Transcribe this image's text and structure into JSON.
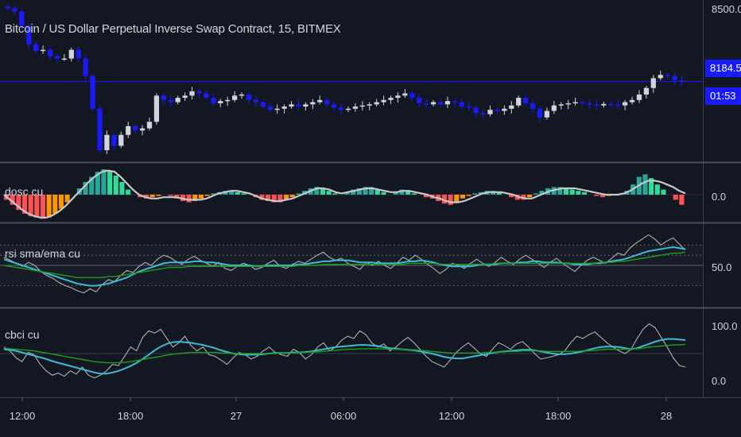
{
  "header": {
    "title": "Bitcoin / US Dollar Perpetual Inverse Swap Contract, 15, BITMEX"
  },
  "colors": {
    "background": "#131722",
    "candle_up": "#d1d4dc",
    "candle_down": "#1a1aff",
    "hist_up_strong": "#26a69a",
    "hist_up_weak": "#2edb9a",
    "hist_down_strong": "#ff5252",
    "hist_down_weak": "#ff9800",
    "oscillator_line": "#c8c8c8",
    "rsi_line": "#b0b0b0",
    "sma_line": "#3cbcd4",
    "ema_line": "#1e9e1e",
    "price_line": "#1a1aff"
  },
  "price_tags": {
    "last_price": "8184.5",
    "countdown": "01:53"
  },
  "chart_data": [
    {
      "type": "candlestick",
      "title": "Bitcoin / US Dollar Perpetual Inverse Swap Contract, 15, BITMEX",
      "y_axis": {
        "ticks": [
          "8500.0"
        ],
        "last_value": 8184.5
      },
      "x_axis": {
        "ticks": [
          "12:00",
          "18:00",
          "27",
          "06:00",
          "12:00",
          "18:00",
          "28"
        ]
      },
      "closes": [
        8520,
        8505,
        8440,
        8355,
        8325,
        8330,
        8300,
        8290,
        8290,
        8330,
        8290,
        8210,
        8060,
        7870,
        7940,
        7890,
        7940,
        7980,
        7960,
        7970,
        8000,
        8120,
        8100,
        8090,
        8110,
        8120,
        8140,
        8130,
        8110,
        8085,
        8095,
        8100,
        8120,
        8125,
        8100,
        8090,
        8070,
        8055,
        8060,
        8070,
        8080,
        8070,
        8080,
        8090,
        8100,
        8080,
        8065,
        8055,
        8060,
        8070,
        8075,
        8080,
        8090,
        8100,
        8110,
        8120,
        8130,
        8110,
        8085,
        8080,
        8090,
        8080,
        8095,
        8090,
        8070,
        8065,
        8040,
        8035,
        8055,
        8050,
        8060,
        8075,
        8110,
        8085,
        8060,
        8020,
        8050,
        8075,
        8080,
        8085,
        8090,
        8085,
        8080,
        8075,
        8082,
        8080,
        8075,
        8090,
        8100,
        8125,
        8155,
        8200,
        8215,
        8210,
        8190,
        8185
      ]
    },
    {
      "type": "histogram",
      "name": "dosc cu",
      "y_axis": {
        "ticks": [
          "0.0"
        ]
      },
      "values": [
        -4,
        -8,
        -12,
        -15,
        -17,
        -18,
        -19,
        -18,
        -15,
        -11,
        -6,
        0,
        5,
        10,
        14,
        18,
        20,
        19,
        15,
        10,
        4,
        0,
        -2,
        -3,
        -2,
        -1,
        0,
        -1,
        -3,
        -5,
        -6,
        -5,
        -3,
        -1,
        1,
        2,
        3,
        3,
        2,
        1,
        0,
        -2,
        -4,
        -5,
        -6,
        -6,
        -4,
        -2,
        1,
        3,
        5,
        6,
        5,
        3,
        1,
        0,
        2,
        4,
        5,
        6,
        6,
        4,
        2,
        0,
        2,
        4,
        3,
        1,
        0,
        -2,
        -3,
        -5,
        -7,
        -8,
        -6,
        -3,
        -1,
        1,
        2,
        3,
        3,
        2,
        0,
        -2,
        -4,
        -4,
        -2,
        1,
        3,
        5,
        6,
        6,
        5,
        4,
        3,
        2,
        0,
        -1,
        -2,
        -1,
        0,
        1,
        3,
        8,
        14,
        16,
        13,
        8,
        4,
        0,
        -4,
        -8
      ],
      "line": [
        0,
        -4,
        -8,
        -12,
        -15,
        -17,
        -18,
        -18,
        -16,
        -13,
        -9,
        -4,
        1,
        6,
        11,
        15,
        18,
        19,
        18,
        14,
        9,
        4,
        0,
        -2,
        -3,
        -3,
        -2,
        -2,
        -2,
        -3,
        -4,
        -4,
        -4,
        -3,
        -1,
        1,
        2,
        3,
        3,
        2,
        1,
        -1,
        -3,
        -4,
        -5,
        -5,
        -4,
        -3,
        -1,
        1,
        3,
        5,
        5,
        4,
        2,
        1,
        2,
        3,
        4,
        5,
        5,
        4,
        3,
        2,
        2,
        3,
        3,
        2,
        1,
        0,
        -2,
        -3,
        -5,
        -6,
        -6,
        -5,
        -3,
        -1,
        1,
        2,
        2,
        2,
        1,
        0,
        -2,
        -3,
        -3,
        -1,
        1,
        3,
        4,
        5,
        5,
        5,
        4,
        3,
        2,
        1,
        0,
        0,
        0,
        1,
        3,
        6,
        9,
        11,
        11,
        10,
        8,
        6,
        3,
        1
      ]
    },
    {
      "type": "line",
      "name": "rsi sma/ema cu",
      "y_axis": {
        "ticks": [
          "50.0"
        ]
      },
      "guides": [
        70,
        60,
        50,
        30
      ],
      "series": [
        {
          "values": [
            58,
            55,
            52,
            49,
            53,
            50,
            44,
            40,
            37,
            33,
            30,
            28,
            25,
            23,
            27,
            24,
            31,
            36,
            34,
            40,
            45,
            43,
            49,
            53,
            50,
            56,
            60,
            58,
            54,
            51,
            56,
            59,
            55,
            52,
            49,
            53,
            47,
            45,
            49,
            52,
            50,
            46,
            48,
            52,
            55,
            49,
            47,
            51,
            54,
            52,
            56,
            60,
            63,
            58,
            55,
            57,
            52,
            49,
            46,
            53,
            50,
            54,
            50,
            47,
            52,
            58,
            55,
            60,
            56,
            51,
            47,
            42,
            46,
            52,
            50,
            47,
            52,
            56,
            52,
            49,
            53,
            58,
            54,
            51,
            56,
            60,
            56,
            52,
            48,
            53,
            57,
            52,
            48,
            44,
            50,
            55,
            58,
            55,
            52,
            57,
            62,
            60,
            67,
            72,
            76,
            80,
            76,
            70,
            74,
            77,
            71,
            65
          ]
        },
        {
          "values": [
            56,
            54,
            52,
            50,
            48,
            46,
            44,
            42,
            40,
            38,
            36,
            34,
            32,
            31,
            30,
            30,
            31,
            32,
            34,
            36,
            38,
            41,
            44,
            46,
            48,
            50,
            52,
            53,
            53,
            53,
            53,
            54,
            54,
            53,
            53,
            52,
            51,
            50,
            50,
            50,
            50,
            49,
            49,
            50,
            50,
            50,
            50,
            50,
            51,
            51,
            52,
            53,
            54,
            54,
            55,
            55,
            55,
            54,
            53,
            53,
            53,
            52,
            52,
            52,
            52,
            53,
            54,
            54,
            55,
            54,
            53,
            51,
            50,
            49,
            49,
            49,
            49,
            50,
            51,
            51,
            51,
            52,
            52,
            52,
            53,
            53,
            54,
            54,
            53,
            53,
            53,
            52,
            52,
            51,
            51,
            51,
            52,
            52,
            53,
            54,
            55,
            56,
            58,
            60,
            62,
            64,
            65,
            66,
            67,
            68,
            67,
            66
          ]
        },
        {
          "values": [
            50,
            49,
            48,
            47,
            46,
            45,
            44,
            43,
            42,
            41,
            40,
            39,
            38,
            38,
            38,
            38,
            38,
            39,
            39,
            40,
            41,
            42,
            43,
            44,
            45,
            46,
            47,
            48,
            48,
            48,
            49,
            49,
            49,
            49,
            49,
            49,
            49,
            49,
            49,
            49,
            49,
            49,
            49,
            49,
            49,
            49,
            49,
            49,
            50,
            50,
            50,
            50,
            51,
            51,
            51,
            51,
            51,
            51,
            51,
            51,
            51,
            51,
            51,
            51,
            51,
            51,
            52,
            52,
            52,
            52,
            52,
            51,
            51,
            51,
            51,
            51,
            51,
            51,
            51,
            51,
            52,
            52,
            52,
            52,
            52,
            52,
            52,
            52,
            52,
            52,
            52,
            52,
            52,
            52,
            52,
            52,
            52,
            53,
            53,
            53,
            54,
            54,
            55,
            56,
            57,
            58,
            59,
            60,
            61,
            62,
            62,
            63
          ]
        }
      ]
    },
    {
      "type": "line",
      "name": "cbci cu",
      "y_axis": {
        "ticks": [
          "100.0",
          "0.0"
        ]
      },
      "guides": [
        50
      ],
      "series": [
        {
          "values": [
            62,
            55,
            42,
            35,
            52,
            48,
            30,
            18,
            10,
            14,
            8,
            18,
            12,
            25,
            10,
            5,
            10,
            18,
            30,
            28,
            45,
            62,
            55,
            80,
            92,
            88,
            95,
            78,
            62,
            70,
            82,
            65,
            55,
            62,
            48,
            45,
            38,
            30,
            42,
            52,
            48,
            40,
            45,
            55,
            62,
            52,
            48,
            45,
            58,
            52,
            40,
            48,
            62,
            70,
            55,
            62,
            75,
            82,
            78,
            92,
            85,
            70,
            62,
            68,
            55,
            62,
            72,
            80,
            70,
            58,
            45,
            35,
            30,
            25,
            38,
            52,
            62,
            70,
            60,
            50,
            45,
            58,
            70,
            65,
            58,
            68,
            72,
            62,
            50,
            40,
            42,
            45,
            48,
            55,
            70,
            82,
            78,
            85,
            90,
            80,
            70,
            62,
            55,
            50,
            58,
            78,
            95,
            105,
            98,
            80,
            62,
            42,
            28,
            25
          ]
        },
        {
          "values": [
            58,
            57,
            55,
            52,
            49,
            46,
            43,
            40,
            36,
            33,
            30,
            27,
            24,
            21,
            18,
            15,
            13,
            13,
            15,
            18,
            22,
            27,
            33,
            40,
            48,
            56,
            63,
            68,
            71,
            72,
            71,
            70,
            68,
            66,
            63,
            60,
            56,
            53,
            50,
            49,
            48,
            48,
            48,
            49,
            50,
            51,
            51,
            51,
            52,
            52,
            53,
            54,
            56,
            58,
            60,
            62,
            63,
            64,
            65,
            66,
            66,
            65,
            64,
            62,
            60,
            59,
            58,
            57,
            56,
            54,
            52,
            50,
            47,
            44,
            42,
            41,
            41,
            43,
            45,
            47,
            49,
            51,
            53,
            54,
            55,
            56,
            57,
            57,
            56,
            54,
            52,
            50,
            49,
            49,
            50,
            52,
            54,
            57,
            60,
            62,
            63,
            63,
            62,
            60,
            58,
            60,
            64,
            68,
            72,
            75,
            77,
            77,
            76,
            75
          ]
        },
        {
          "values": [
            60,
            59,
            58,
            57,
            56,
            55,
            53,
            51,
            49,
            47,
            45,
            43,
            41,
            39,
            37,
            35,
            34,
            33,
            33,
            33,
            34,
            35,
            37,
            39,
            41,
            43,
            45,
            47,
            49,
            50,
            51,
            52,
            52,
            52,
            52,
            52,
            51,
            51,
            50,
            50,
            50,
            50,
            50,
            50,
            50,
            50,
            51,
            51,
            51,
            52,
            52,
            53,
            53,
            54,
            55,
            56,
            57,
            58,
            58,
            59,
            59,
            59,
            59,
            59,
            58,
            58,
            58,
            57,
            57,
            56,
            55,
            54,
            53,
            52,
            51,
            51,
            51,
            51,
            51,
            51,
            52,
            52,
            53,
            53,
            54,
            54,
            55,
            55,
            55,
            55,
            54,
            54,
            54,
            54,
            54,
            54,
            55,
            55,
            56,
            57,
            58,
            58,
            58,
            58,
            58,
            59,
            60,
            62,
            63,
            64,
            65,
            66,
            66,
            67
          ]
        }
      ]
    }
  ],
  "panel_labels": {
    "dosc": "dosc cu",
    "rsi": "rsi sma/ema cu",
    "cbci": "cbci cu"
  },
  "axis_labels": {
    "price_tick": "8500.0",
    "dosc_tick": "0.0",
    "rsi_tick": "50.0",
    "cbci_tick_high": "100.0",
    "cbci_tick_low": "0.0",
    "time": [
      "12:00",
      "18:00",
      "27",
      "06:00",
      "12:00",
      "18:00",
      "28"
    ]
  }
}
